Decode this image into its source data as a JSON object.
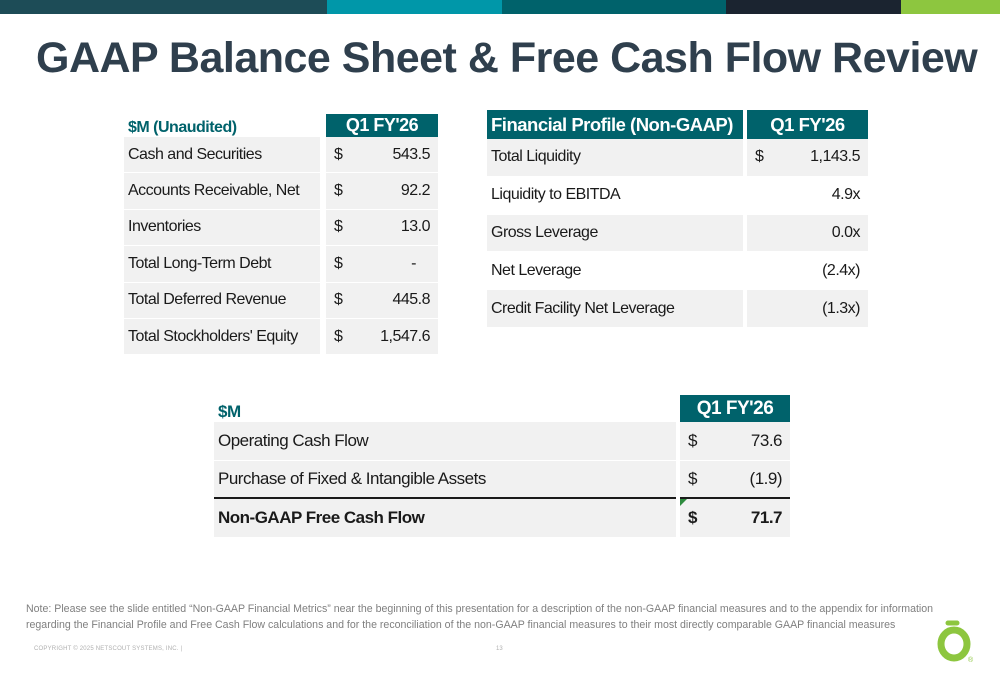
{
  "colors": {
    "teal": "#00626b",
    "title": "#2f3f4d",
    "lime": "#8dc63f"
  },
  "topbar": [
    {
      "color": "#1d4c57",
      "width": 327
    },
    {
      "color": "#0097a9",
      "width": 175
    },
    {
      "color": "#00626b",
      "width": 224
    },
    {
      "color": "#1b2430",
      "width": 175
    },
    {
      "color": "#8dc63f",
      "width": 99
    }
  ],
  "title": "GAAP Balance Sheet & Free Cash Flow Review",
  "balance": {
    "caption": "$M (Unaudited)",
    "col_header": "Q1 FY'26",
    "rows": [
      {
        "label": "Cash and Securities",
        "cur": "$",
        "value": "543.5"
      },
      {
        "label": "Accounts Receivable, Net",
        "cur": "$",
        "value": "92.2"
      },
      {
        "label": "Inventories",
        "cur": "$",
        "value": "13.0"
      },
      {
        "label": "Total Long-Term Debt",
        "cur": "$",
        "value": "-"
      },
      {
        "label": "Total Deferred Revenue",
        "cur": "$",
        "value": "445.8"
      },
      {
        "label": "Total Stockholders' Equity",
        "cur": "$",
        "value": "1,547.6"
      }
    ]
  },
  "profile": {
    "header": "Financial Profile (Non-GAAP)",
    "col_header": "Q1 FY'26",
    "rows": [
      {
        "label": "Total Liquidity",
        "cur": "$",
        "value": "1,143.5"
      },
      {
        "label": "Liquidity to EBITDA",
        "cur": "",
        "value": "4.9x"
      },
      {
        "label": "Gross Leverage",
        "cur": "",
        "value": "0.0x"
      },
      {
        "label": "Net Leverage",
        "cur": "",
        "value": "(2.4x)"
      },
      {
        "label": "Credit Facility Net Leverage",
        "cur": "",
        "value": "(1.3x)"
      }
    ]
  },
  "cashflow": {
    "caption": "$M",
    "col_header": "Q1 FY'26",
    "rows": [
      {
        "label": "Operating Cash Flow",
        "cur": "$",
        "value": "73.6"
      },
      {
        "label": "Purchase of Fixed & Intangible Assets",
        "cur": "$",
        "value": "(1.9)"
      },
      {
        "label": "Non-GAAP Free Cash Flow",
        "cur": "$",
        "value": "71.7"
      }
    ]
  },
  "note": "Note: Please see the slide entitled “Non-GAAP Financial Metrics” near the beginning of this presentation for a description of the non-GAAP financial measures and to the appendix for information regarding the Financial Profile and Free Cash Flow calculations and for the reconciliation of the non-GAAP financial measures to their most directly comparable GAAP financial measures",
  "footer": "COPYRIGHT © 2025 NETSCOUT SYSTEMS, INC.  |",
  "page_number": "13",
  "logo": {
    "icon": "netscout-logo-icon",
    "mark": "®"
  }
}
